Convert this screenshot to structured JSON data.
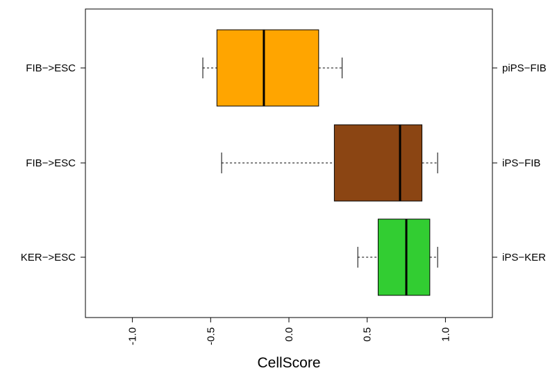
{
  "chart_data": {
    "type": "boxplot",
    "orientation": "horizontal",
    "xlabel": "CellScore",
    "xlim": [
      -1.3,
      1.3
    ],
    "x_ticks": [
      -1.0,
      -0.5,
      0.0,
      0.5,
      1.0
    ],
    "x_tick_labels": [
      "-1.0",
      "-0.5",
      "0.0",
      "0.5",
      "1.0"
    ],
    "x_tick_label_rotation": "vertical",
    "grid": false,
    "legend": "none",
    "boxes": [
      {
        "left_label": "FIB−>ESC",
        "right_label": "piPS−FIB",
        "color": "#FFA500",
        "whisker_low": -0.55,
        "q1": -0.46,
        "median": -0.16,
        "q3": 0.19,
        "whisker_high": 0.34
      },
      {
        "left_label": "FIB−>ESC",
        "right_label": "iPS−FIB",
        "color": "#8B4513",
        "whisker_low": -0.43,
        "q1": 0.29,
        "median": 0.71,
        "q3": 0.85,
        "whisker_high": 0.95
      },
      {
        "left_label": "KER−>ESC",
        "right_label": "iPS−KER",
        "color": "#32CD32",
        "whisker_low": 0.44,
        "q1": 0.57,
        "median": 0.75,
        "q3": 0.9,
        "whisker_high": 0.95
      }
    ]
  }
}
